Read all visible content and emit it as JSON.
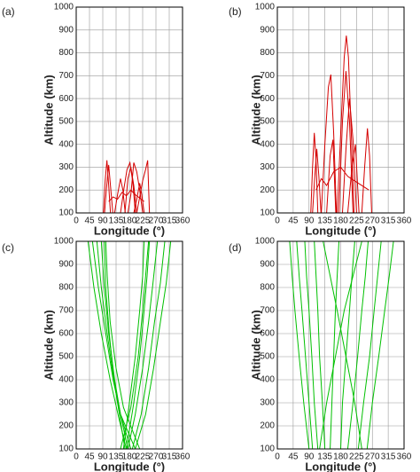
{
  "chart_data": [
    {
      "type": "line",
      "label": "(a)",
      "xlabel": "Longitude (°)",
      "ylabel": "Altitude (km)",
      "xlim": [
        0,
        360
      ],
      "ylim": [
        100,
        1000
      ],
      "grid": true,
      "xticks": [
        0,
        45,
        90,
        135,
        180,
        225,
        270,
        315,
        360
      ],
      "yticks": [
        100,
        200,
        300,
        400,
        500,
        600,
        700,
        800,
        900,
        1000
      ],
      "series": [
        {
          "color": "#d40000",
          "x": [
            92,
            98,
            104,
            110,
            116
          ],
          "values": [
            100,
            240,
            330,
            220,
            100
          ]
        },
        {
          "color": "#d40000",
          "x": [
            96,
            102,
            110,
            118,
            124
          ],
          "values": [
            100,
            200,
            310,
            190,
            100
          ]
        },
        {
          "color": "#d40000",
          "x": [
            130,
            140,
            150,
            158,
            166
          ],
          "values": [
            100,
            180,
            250,
            200,
            100
          ]
        },
        {
          "color": "#d40000",
          "x": [
            150,
            162,
            172,
            182,
            192,
            200
          ],
          "values": [
            100,
            210,
            290,
            320,
            230,
            100
          ]
        },
        {
          "color": "#d40000",
          "x": [
            165,
            175,
            185,
            195,
            205
          ],
          "values": [
            100,
            250,
            300,
            220,
            100
          ]
        },
        {
          "color": "#d40000",
          "x": [
            175,
            185,
            195,
            205,
            215,
            225
          ],
          "values": [
            100,
            180,
            320,
            280,
            200,
            100
          ]
        },
        {
          "color": "#d40000",
          "x": [
            195,
            205,
            215,
            222,
            230
          ],
          "values": [
            100,
            160,
            230,
            180,
            100
          ]
        },
        {
          "color": "#d40000",
          "x": [
            205,
            215,
            225,
            235,
            242,
            248
          ],
          "values": [
            100,
            170,
            240,
            290,
            330,
            100
          ]
        },
        {
          "color": "#d40000",
          "x": [
            110,
            125,
            140,
            155,
            170,
            185,
            200,
            215,
            230
          ],
          "values": [
            150,
            170,
            160,
            190,
            175,
            200,
            180,
            165,
            150
          ]
        }
      ]
    },
    {
      "type": "line",
      "label": "(b)",
      "xlabel": "Longitude (°)",
      "ylabel": "Altitude (km)",
      "xlim": [
        0,
        360
      ],
      "ylim": [
        100,
        1000
      ],
      "grid": true,
      "xticks": [
        0,
        45,
        90,
        135,
        180,
        225,
        270,
        315,
        360
      ],
      "yticks": [
        100,
        200,
        300,
        400,
        500,
        600,
        700,
        800,
        900,
        1000
      ],
      "series": [
        {
          "color": "#d40000",
          "x": [
            95,
            100,
            105,
            110,
            115
          ],
          "values": [
            100,
            300,
            450,
            330,
            100
          ]
        },
        {
          "color": "#d40000",
          "x": [
            100,
            106,
            112,
            118,
            124
          ],
          "values": [
            100,
            250,
            380,
            260,
            100
          ]
        },
        {
          "color": "#d40000",
          "x": [
            125,
            135,
            145,
            152,
            160,
            168
          ],
          "values": [
            100,
            400,
            650,
            705,
            450,
            100
          ]
        },
        {
          "color": "#d40000",
          "x": [
            140,
            150,
            158,
            166
          ],
          "values": [
            100,
            350,
            420,
            100
          ]
        },
        {
          "color": "#d40000",
          "x": [
            170,
            180,
            190,
            196,
            202,
            210,
            218
          ],
          "values": [
            100,
            450,
            780,
            875,
            780,
            450,
            100
          ]
        },
        {
          "color": "#d40000",
          "x": [
            175,
            185,
            195,
            205,
            215
          ],
          "values": [
            100,
            500,
            720,
            500,
            100
          ]
        },
        {
          "color": "#d40000",
          "x": [
            185,
            195,
            205,
            215,
            225
          ],
          "values": [
            100,
            380,
            600,
            420,
            100
          ]
        },
        {
          "color": "#d40000",
          "x": [
            200,
            212,
            222,
            232
          ],
          "values": [
            100,
            300,
            400,
            100
          ]
        },
        {
          "color": "#d40000",
          "x": [
            240,
            248,
            256,
            262,
            268
          ],
          "values": [
            100,
            300,
            470,
            350,
            100
          ]
        },
        {
          "color": "#d40000",
          "x": [
            110,
            125,
            140,
            160,
            180,
            200,
            220,
            240,
            260
          ],
          "values": [
            200,
            250,
            220,
            280,
            300,
            260,
            240,
            220,
            200
          ]
        }
      ]
    },
    {
      "type": "line",
      "label": "(c)",
      "xlabel": "Longitude (°)",
      "ylabel": "Altitude (km)",
      "xlim": [
        0,
        360
      ],
      "ylim": [
        100,
        1000
      ],
      "grid": true,
      "xticks": [
        0,
        45,
        90,
        135,
        180,
        225,
        270,
        315,
        360
      ],
      "yticks": [
        100,
        200,
        300,
        400,
        500,
        600,
        700,
        800,
        900,
        1000
      ],
      "series": [
        {
          "color": "#00c000",
          "x": [
            40,
            60,
            85,
            115,
            145,
            170
          ],
          "values": [
            1000,
            800,
            600,
            400,
            230,
            100
          ]
        },
        {
          "color": "#00c000",
          "x": [
            55,
            75,
            100,
            125,
            150,
            175
          ],
          "values": [
            1000,
            800,
            600,
            400,
            250,
            100
          ]
        },
        {
          "color": "#00c000",
          "x": [
            70,
            85,
            105,
            125,
            145,
            165
          ],
          "values": [
            1000,
            800,
            600,
            420,
            260,
            100
          ]
        },
        {
          "color": "#00c000",
          "x": [
            85,
            95,
            110,
            130,
            150,
            185
          ],
          "values": [
            1000,
            800,
            600,
            400,
            250,
            100
          ]
        },
        {
          "color": "#00c000",
          "x": [
            95,
            100,
            112,
            128,
            150,
            200
          ],
          "values": [
            1000,
            800,
            600,
            400,
            250,
            100
          ]
        },
        {
          "color": "#00c000",
          "x": [
            100,
            105,
            115,
            135,
            160,
            215
          ],
          "values": [
            1000,
            850,
            650,
            450,
            280,
            100
          ]
        },
        {
          "color": "#00c000",
          "x": [
            160,
            180,
            200,
            215,
            225,
            230
          ],
          "values": [
            100,
            300,
            500,
            700,
            850,
            1000
          ]
        },
        {
          "color": "#00c000",
          "x": [
            150,
            185,
            210,
            225,
            235,
            245
          ],
          "values": [
            100,
            280,
            500,
            700,
            850,
            1000
          ]
        },
        {
          "color": "#00c000",
          "x": [
            175,
            200,
            225,
            245,
            260,
            275
          ],
          "values": [
            100,
            250,
            450,
            650,
            820,
            1000
          ]
        },
        {
          "color": "#00c000",
          "x": [
            190,
            220,
            245,
            265,
            285,
            300
          ],
          "values": [
            100,
            250,
            450,
            650,
            820,
            1000
          ]
        },
        {
          "color": "#00c000",
          "x": [
            200,
            235,
            262,
            285,
            305,
            320
          ],
          "values": [
            100,
            250,
            450,
            650,
            820,
            1000
          ]
        },
        {
          "color": "#00c000",
          "x": [
            170,
            195,
            215,
            230,
            240,
            248
          ],
          "values": [
            100,
            300,
            500,
            700,
            850,
            1000
          ]
        }
      ]
    },
    {
      "type": "line",
      "label": "(d)",
      "xlabel": "Longitude (°)",
      "ylabel": "Altitude (km)",
      "xlim": [
        0,
        360
      ],
      "ylim": [
        100,
        1000
      ],
      "grid": true,
      "xticks": [
        0,
        45,
        90,
        135,
        180,
        225,
        270,
        315,
        360
      ],
      "yticks": [
        100,
        200,
        300,
        400,
        500,
        600,
        700,
        800,
        900,
        1000
      ],
      "series": [
        {
          "color": "#00c000",
          "x": [
            90,
            75,
            62,
            50,
            42,
            35
          ],
          "values": [
            100,
            300,
            500,
            700,
            850,
            1000
          ]
        },
        {
          "color": "#00c000",
          "x": [
            100,
            90,
            80,
            70,
            62,
            55
          ],
          "values": [
            100,
            300,
            500,
            700,
            850,
            1000
          ]
        },
        {
          "color": "#00c000",
          "x": [
            115,
            105,
            98,
            90,
            83,
            78
          ],
          "values": [
            100,
            300,
            500,
            700,
            850,
            1000
          ]
        },
        {
          "color": "#00c000",
          "x": [
            135,
            128,
            120,
            115,
            110,
            105
          ],
          "values": [
            100,
            300,
            500,
            700,
            850,
            1000
          ]
        },
        {
          "color": "#00c000",
          "x": [
            150,
            155,
            160,
            165,
            170,
            175
          ],
          "values": [
            100,
            300,
            500,
            700,
            850,
            1000
          ]
        },
        {
          "color": "#00c000",
          "x": [
            180,
            185,
            195,
            205,
            212,
            220
          ],
          "values": [
            100,
            300,
            500,
            700,
            850,
            1000
          ]
        },
        {
          "color": "#00c000",
          "x": [
            200,
            215,
            228,
            240,
            250,
            258
          ],
          "values": [
            100,
            300,
            500,
            700,
            850,
            1000
          ]
        },
        {
          "color": "#00c000",
          "x": [
            230,
            245,
            262,
            275,
            285,
            295
          ],
          "values": [
            100,
            300,
            500,
            700,
            850,
            1000
          ]
        },
        {
          "color": "#00c000",
          "x": [
            255,
            270,
            288,
            305,
            318,
            330
          ],
          "values": [
            100,
            300,
            500,
            700,
            850,
            1000
          ]
        },
        {
          "color": "#00c000",
          "x": [
            120,
            140,
            165,
            190,
            215,
            240
          ],
          "values": [
            100,
            300,
            500,
            700,
            850,
            1000
          ]
        },
        {
          "color": "#00c000",
          "x": [
            240,
            220,
            195,
            170,
            150,
            130
          ],
          "values": [
            100,
            300,
            500,
            700,
            850,
            1000
          ]
        }
      ]
    }
  ]
}
